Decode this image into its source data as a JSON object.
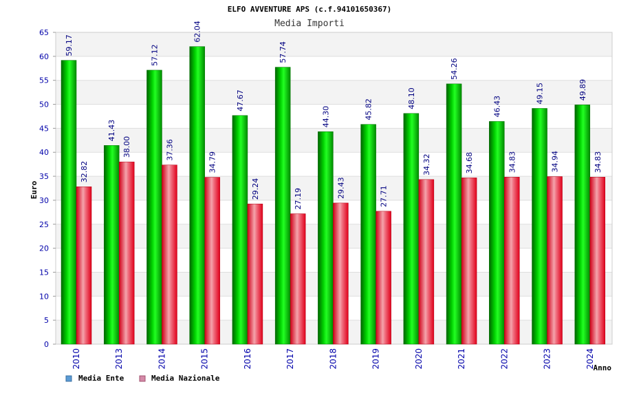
{
  "chart_data": {
    "type": "bar",
    "title": "ELFO AVVENTURE APS (c.f.94101650367)",
    "subtitle": "Media Importi",
    "xlabel": "Anno",
    "ylabel": "Euro",
    "ylim": [
      0,
      65
    ],
    "yticks": [
      0,
      5,
      10,
      15,
      20,
      25,
      30,
      35,
      40,
      45,
      50,
      55,
      60,
      65
    ],
    "categories": [
      "2010",
      "2013",
      "2014",
      "2015",
      "2016",
      "2017",
      "2018",
      "2019",
      "2020",
      "2021",
      "2022",
      "2023",
      "2024"
    ],
    "series": [
      {
        "name": "Media Ente",
        "color": "#00c000",
        "legend_color": "#5b9bd5",
        "values": [
          59.17,
          41.43,
          57.12,
          62.04,
          47.67,
          57.74,
          44.3,
          45.82,
          48.1,
          54.26,
          46.43,
          49.15,
          49.89
        ],
        "labels": [
          "59.17",
          "41.43",
          "57.12",
          "62.04",
          "47.67",
          "57.74",
          "44.30",
          "45.82",
          "48.10",
          "54.26",
          "46.43",
          "49.15",
          "49.89"
        ]
      },
      {
        "name": "Media Nazionale",
        "color": "#e8001c",
        "legend_color": "#d48aa8",
        "values": [
          32.82,
          38.0,
          37.36,
          34.79,
          29.24,
          27.19,
          29.43,
          27.71,
          34.32,
          34.68,
          34.83,
          34.94,
          34.83
        ],
        "labels": [
          "32.82",
          "38.00",
          "37.36",
          "34.79",
          "29.24",
          "27.19",
          "29.43",
          "27.71",
          "34.32",
          "34.68",
          "34.83",
          "34.94",
          "34.83"
        ]
      }
    ],
    "grid": true,
    "legend": "bottom-left"
  }
}
